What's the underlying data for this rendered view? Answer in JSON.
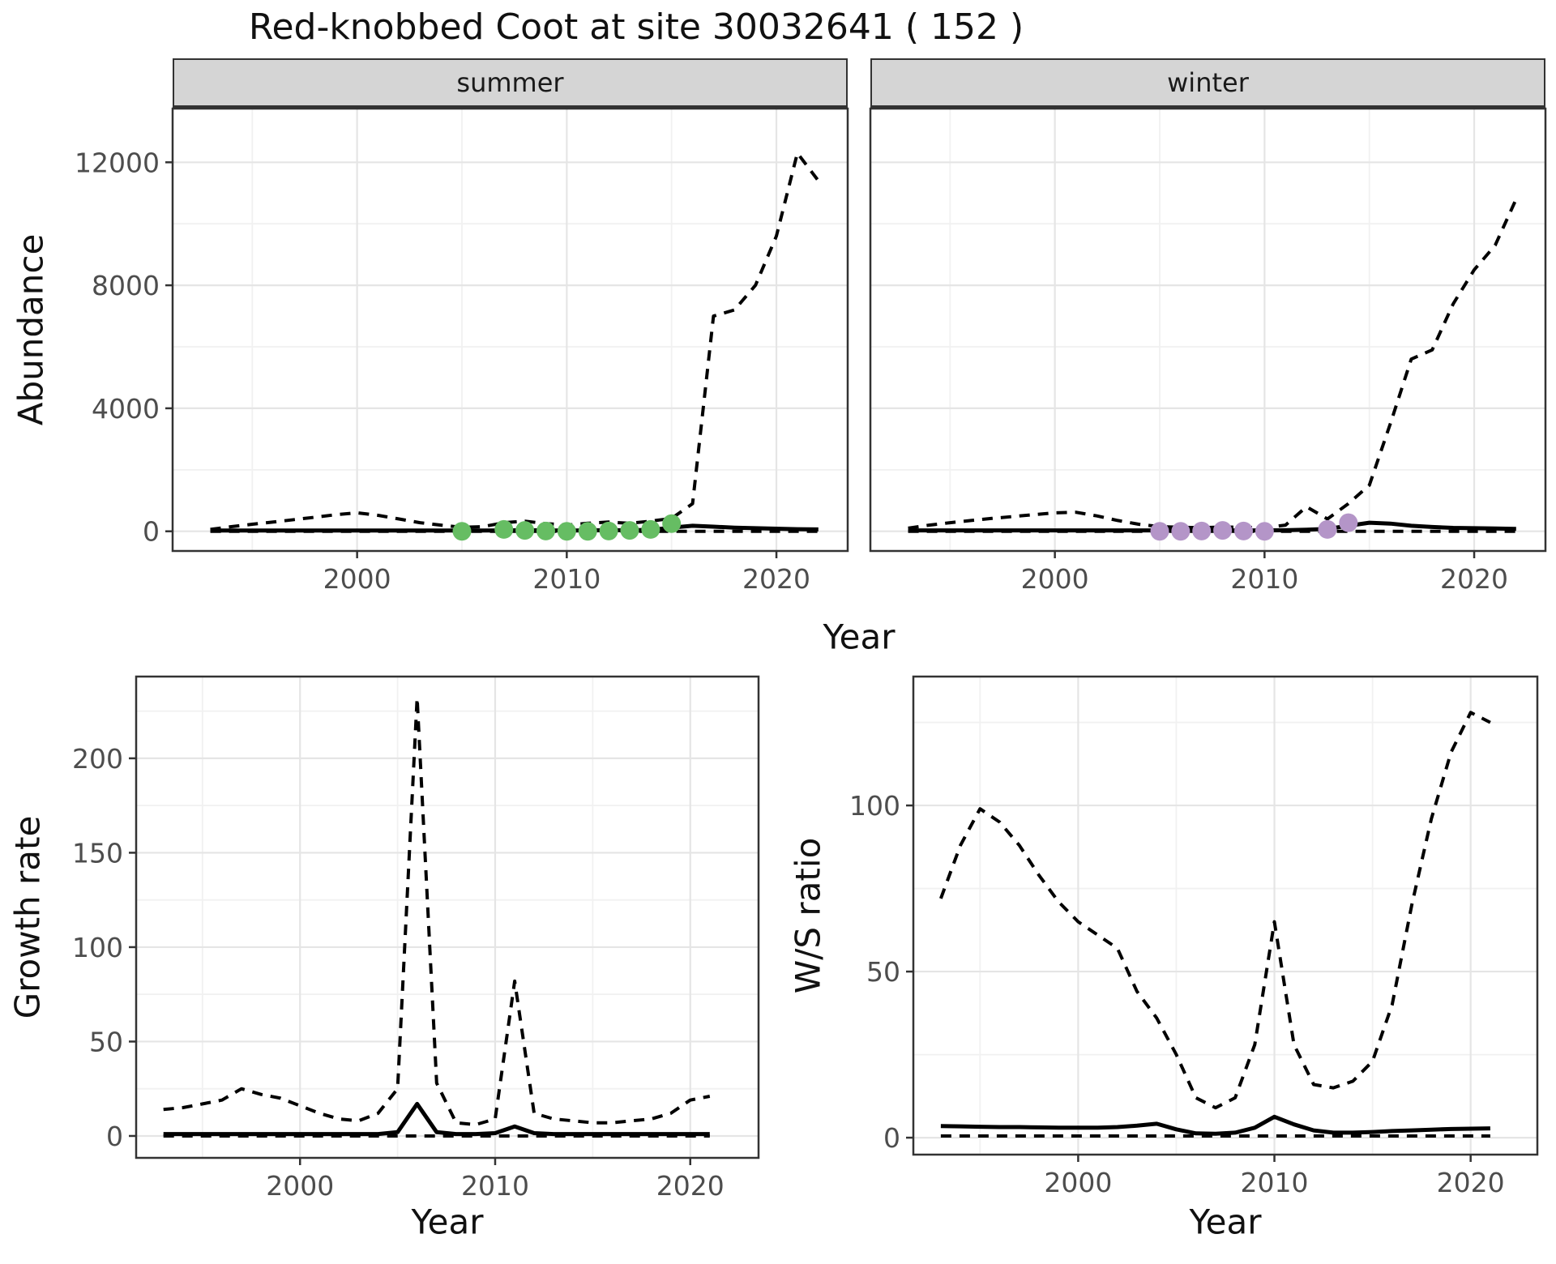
{
  "title": "Red-knobbed Coot at site 30032641 ( 152 )",
  "colors": {
    "panel_bg": "#ffffff",
    "panel_border": "#333333",
    "grid_major": "#e5e5e5",
    "grid_minor": "#f1f1f1",
    "line": "#000000",
    "tick_text": "#4d4d4d",
    "tick_mark": "#333333",
    "strip_bg": "#d5d5d5",
    "summer_points": "#66bd63",
    "winter_points": "#b495c8"
  },
  "facets": [
    "summer",
    "winter"
  ],
  "chart_data": [
    {
      "id": "abundance-summer",
      "type": "line",
      "facet": "summer",
      "ylabel": "Abundance",
      "xlabel": "Year",
      "xlim": [
        1991.2,
        2023.4
      ],
      "ylim": [
        -640,
        13747
      ],
      "x_ticks": [
        2000,
        2010,
        2020
      ],
      "x_minor": [
        1995,
        2005,
        2015
      ],
      "y_ticks": [
        0,
        4000,
        8000,
        12000
      ],
      "y_minor": [
        2000,
        6000,
        10000
      ],
      "show_y_labels": true,
      "years": [
        1993,
        1994,
        1995,
        1996,
        1997,
        1998,
        1999,
        2000,
        2001,
        2002,
        2003,
        2004,
        2005,
        2006,
        2007,
        2008,
        2009,
        2010,
        2011,
        2012,
        2013,
        2014,
        2015,
        2016,
        2017,
        2018,
        2019,
        2020,
        2021,
        2022
      ],
      "series": [
        {
          "name": "lower_ci",
          "style": "dashed",
          "values": [
            0,
            0,
            0,
            0,
            0,
            0,
            0,
            0,
            0,
            0,
            0,
            0,
            0,
            0,
            0,
            0,
            0,
            0,
            0,
            0,
            0,
            0,
            0,
            0,
            0,
            0,
            0,
            0,
            0,
            0
          ]
        },
        {
          "name": "upper_ci",
          "style": "dashed",
          "values": [
            60,
            150,
            230,
            300,
            380,
            460,
            540,
            600,
            520,
            400,
            280,
            200,
            130,
            150,
            280,
            330,
            250,
            200,
            260,
            300,
            260,
            330,
            420,
            900,
            7000,
            7200,
            8000,
            9600,
            12300,
            11400
          ]
        },
        {
          "name": "fit",
          "style": "solid",
          "values": [
            25,
            25,
            25,
            25,
            25,
            25,
            25,
            25,
            25,
            25,
            25,
            25,
            25,
            25,
            30,
            35,
            30,
            25,
            30,
            35,
            35,
            45,
            120,
            180,
            150,
            120,
            100,
            85,
            70,
            60
          ]
        }
      ],
      "points": {
        "name": "summer-counts",
        "color": "#66bd63",
        "x": [
          2005,
          2007,
          2008,
          2009,
          2010,
          2011,
          2012,
          2013,
          2014,
          2015
        ],
        "y": [
          0,
          60,
          30,
          10,
          0,
          0,
          10,
          30,
          60,
          250
        ]
      }
    },
    {
      "id": "abundance-winter",
      "type": "line",
      "facet": "winter",
      "ylabel": "Abundance",
      "xlabel": "Year",
      "xlim": [
        1991.2,
        2023.4
      ],
      "ylim": [
        -640,
        13747
      ],
      "x_ticks": [
        2000,
        2010,
        2020
      ],
      "x_minor": [
        1995,
        2005,
        2015
      ],
      "y_ticks": [
        0,
        4000,
        8000,
        12000
      ],
      "y_minor": [
        2000,
        6000,
        10000
      ],
      "show_y_labels": false,
      "years": [
        1993,
        1994,
        1995,
        1996,
        1997,
        1998,
        1999,
        2000,
        2001,
        2002,
        2003,
        2004,
        2005,
        2006,
        2007,
        2008,
        2009,
        2010,
        2011,
        2012,
        2013,
        2014,
        2015,
        2016,
        2017,
        2018,
        2019,
        2020,
        2021,
        2022
      ],
      "series": [
        {
          "name": "lower_ci",
          "style": "dashed",
          "values": [
            0,
            0,
            0,
            0,
            0,
            0,
            0,
            0,
            0,
            0,
            0,
            0,
            0,
            0,
            0,
            0,
            0,
            0,
            0,
            0,
            0,
            0,
            0,
            0,
            0,
            0,
            0,
            0,
            0,
            0
          ]
        },
        {
          "name": "upper_ci",
          "style": "dashed",
          "values": [
            100,
            200,
            280,
            350,
            420,
            480,
            540,
            600,
            620,
            500,
            350,
            230,
            150,
            130,
            120,
            140,
            130,
            120,
            200,
            800,
            400,
            900,
            1500,
            3500,
            5600,
            5900,
            7400,
            8500,
            9300,
            10800
          ]
        },
        {
          "name": "fit",
          "style": "solid",
          "values": [
            30,
            30,
            30,
            30,
            30,
            30,
            30,
            30,
            30,
            30,
            30,
            30,
            30,
            30,
            30,
            30,
            30,
            30,
            35,
            50,
            80,
            180,
            280,
            250,
            180,
            140,
            110,
            100,
            90,
            80
          ]
        }
      ],
      "points": {
        "name": "winter-counts",
        "color": "#b495c8",
        "x": [
          2005,
          2006,
          2007,
          2008,
          2009,
          2010,
          2013,
          2014
        ],
        "y": [
          0,
          0,
          10,
          30,
          10,
          0,
          60,
          280
        ]
      }
    },
    {
      "id": "growth-rate",
      "type": "line",
      "facet": null,
      "ylabel": "Growth rate",
      "xlabel": "Year",
      "xlim": [
        1991.6,
        2023.5
      ],
      "ylim": [
        -11.6,
        243.3
      ],
      "x_ticks": [
        2000,
        2010,
        2020
      ],
      "x_minor": [
        1995,
        2005,
        2015
      ],
      "y_ticks": [
        0,
        50,
        100,
        150,
        200
      ],
      "y_minor": [
        25,
        75,
        125,
        175,
        225
      ],
      "show_y_labels": true,
      "years": [
        1993,
        1994,
        1995,
        1996,
        1997,
        1998,
        1999,
        2000,
        2001,
        2002,
        2003,
        2004,
        2005,
        2006,
        2007,
        2008,
        2009,
        2010,
        2011,
        2012,
        2013,
        2014,
        2015,
        2016,
        2017,
        2018,
        2019,
        2020,
        2021
      ],
      "series": [
        {
          "name": "lower_ci",
          "style": "dashed",
          "values": [
            0,
            0,
            0,
            0,
            0,
            0,
            0,
            0,
            0,
            0,
            0,
            0,
            0,
            0,
            0,
            0,
            0,
            0,
            0,
            0,
            0,
            0,
            0,
            0,
            0,
            0,
            0,
            0,
            0
          ]
        },
        {
          "name": "upper_ci",
          "style": "dashed",
          "values": [
            14,
            15,
            17,
            19,
            25,
            22,
            20,
            16,
            12,
            9,
            8,
            12,
            25,
            232,
            28,
            7,
            6,
            9,
            82,
            12,
            9,
            8,
            7,
            7,
            8,
            9,
            12,
            19,
            21
          ]
        },
        {
          "name": "fit",
          "style": "solid",
          "values": [
            1,
            1,
            1,
            1,
            1,
            1,
            1,
            1,
            1,
            1,
            1,
            1,
            2,
            17,
            2,
            1,
            1,
            1.5,
            5,
            1.5,
            1,
            1,
            1,
            1,
            1,
            1,
            1,
            1,
            1
          ]
        }
      ],
      "points": null
    },
    {
      "id": "ws-ratio",
      "type": "line",
      "facet": null,
      "ylabel": "W/S ratio",
      "xlabel": "Year",
      "xlim": [
        1991.6,
        2023.4
      ],
      "ylim": [
        -5.1,
        138.8
      ],
      "x_ticks": [
        2000,
        2010,
        2020
      ],
      "x_minor": [
        1995,
        2005,
        2015
      ],
      "y_ticks": [
        0,
        50,
        100
      ],
      "y_minor": [
        25,
        75,
        125
      ],
      "show_y_labels": true,
      "years": [
        1993,
        1994,
        1995,
        1996,
        1997,
        1998,
        1999,
        2000,
        2001,
        2002,
        2003,
        2004,
        2005,
        2006,
        2007,
        2008,
        2009,
        2010,
        2011,
        2012,
        2013,
        2014,
        2015,
        2016,
        2017,
        2018,
        2019,
        2020,
        2021
      ],
      "series": [
        {
          "name": "lower_ci",
          "style": "dashed",
          "values": [
            0.5,
            0.5,
            0.5,
            0.5,
            0.5,
            0.5,
            0.5,
            0.5,
            0.5,
            0.5,
            0.5,
            0.5,
            0.5,
            0.5,
            0.5,
            0.5,
            0.5,
            0.5,
            0.5,
            0.5,
            0.5,
            0.5,
            0.5,
            0.5,
            0.5,
            0.5,
            0.5,
            0.5,
            0.5
          ]
        },
        {
          "name": "upper_ci",
          "style": "dashed",
          "values": [
            72,
            88,
            99,
            95,
            88,
            79,
            71,
            65,
            61,
            57,
            44,
            36,
            25,
            12,
            9,
            12,
            28,
            65,
            28,
            16,
            15,
            17,
            23,
            40,
            70,
            96,
            116,
            128,
            125
          ]
        },
        {
          "name": "fit",
          "style": "solid",
          "values": [
            3.5,
            3.4,
            3.3,
            3.2,
            3.2,
            3.1,
            3,
            3,
            3,
            3.2,
            3.6,
            4.2,
            2.5,
            1.3,
            1.2,
            1.5,
            3,
            6.3,
            4,
            2.2,
            1.5,
            1.5,
            1.7,
            2,
            2.2,
            2.4,
            2.6,
            2.7,
            2.8
          ]
        }
      ],
      "points": null
    }
  ]
}
